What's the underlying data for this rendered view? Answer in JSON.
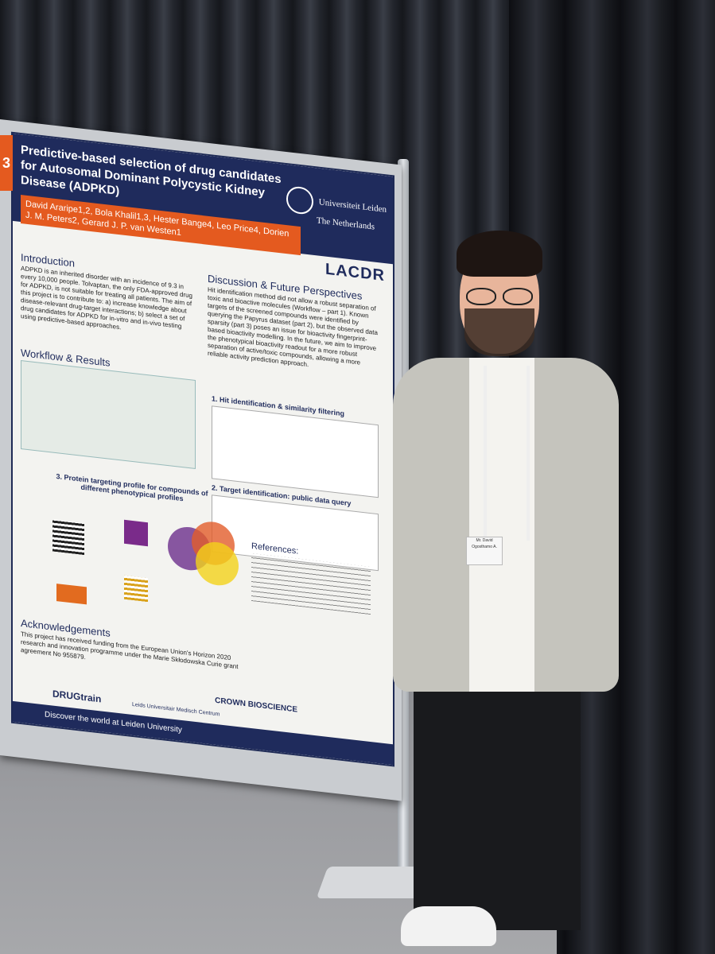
{
  "poster": {
    "title": "Predictive-based selection of drug candidates for Autosomal Dominant Polycystic Kidney Disease (ADPKD)",
    "university": "Universiteit Leiden",
    "university_sub": "The Netherlands",
    "authors": "David Araripe1,2, Bola Khalil1,3, Hester Bange4, Leo Price4, Dorien J. M. Peters2, Gerard J. P. van Westen1",
    "lab_logo": "LACDR",
    "intro_heading": "Introduction",
    "intro_text": "ADPKD is an inherited disorder with an incidence of 9.3 in every 10,000 people. Tolvaptan, the only FDA-approved drug for ADPKD, is not suitable for treating all patients. The aim of this project is to contribute to: a) increase knowledge about disease-relevant drug-target interactions; b) select a set of drug candidates for ADPKD for in-vitro and in-vivo testing using predictive-based approaches.",
    "discussion_heading": "Discussion & Future Perspectives",
    "discussion_text": "Hit identification method did not allow a robust separation of toxic and bioactive molecules (Workflow – part 1). Known targets of the screened compounds were identified by querying the Papyrus dataset (part 2), but the observed data sparsity (part 3) poses an issue for bioactivity fingerprint-based bioactivity modelling. In the future, we aim to improve the phenotypical bioactivity readout for a more robust separation of active/toxic compounds, allowing a more reliable activity prediction approach.",
    "workflow_heading": "Workflow & Results",
    "step1": "1. Hit identification & similarity filtering",
    "step2": "2. Target identification: public data query",
    "step3": "3. Protein targeting profile for compounds of different phenotypical profiles",
    "references_heading": "References:",
    "ack_heading": "Acknowledgements",
    "ack_text": "This project has received funding from the European Union's Horizon 2020 research and innovation programme under the Marie Skłodowska Curie grant agreement No 955879.",
    "sponsor_1": "DRUGtrain",
    "sponsor_2": "Leids Universitair Medisch Centrum",
    "sponsor_3": "CROWN BIOSCIENCE",
    "footer": "Discover the world at Leiden University",
    "board_number": "3"
  },
  "badge_text": "Mr. David Ogosthamo A."
}
